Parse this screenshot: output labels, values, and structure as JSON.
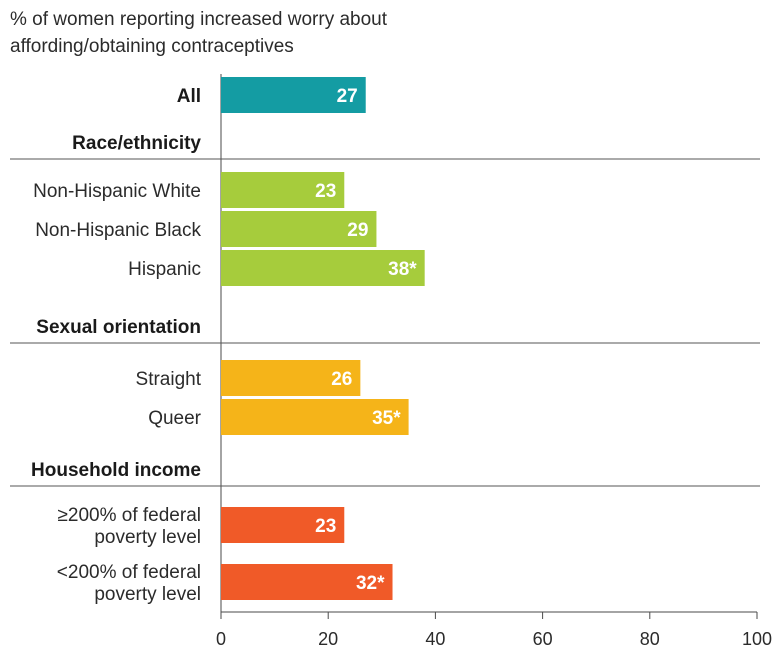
{
  "chart_data": {
    "type": "bar",
    "orientation": "horizontal",
    "title": "% of women reporting increased worry about\naffording/obtaining contraceptives",
    "xlim": [
      0,
      100
    ],
    "xticks": [
      "0",
      "20",
      "40",
      "60",
      "80",
      "100"
    ],
    "grid": false,
    "groups": [
      {
        "label": "",
        "color": "#149ca3",
        "rows": [
          {
            "label": "All",
            "value": 27,
            "display": "27",
            "bold": true
          }
        ]
      },
      {
        "label": "Race/ethnicity",
        "color": "#a6cc3c",
        "rows": [
          {
            "label": "Non-Hispanic White",
            "value": 23,
            "display": "23"
          },
          {
            "label": "Non-Hispanic Black",
            "value": 29,
            "display": "29"
          },
          {
            "label": "Hispanic",
            "value": 38,
            "display": "38*"
          }
        ]
      },
      {
        "label": "Sexual orientation",
        "color": "#f5b419",
        "rows": [
          {
            "label": "Straight",
            "value": 26,
            "display": "26"
          },
          {
            "label": "Queer",
            "value": 35,
            "display": "35*"
          }
        ]
      },
      {
        "label": "Household income",
        "color": "#f05a28",
        "rows": [
          {
            "label": "≥200% of federal\npoverty level",
            "value": 23,
            "display": "23"
          },
          {
            "label": "<200% of federal\npoverty level",
            "value": 32,
            "display": "32*"
          }
        ]
      }
    ]
  }
}
